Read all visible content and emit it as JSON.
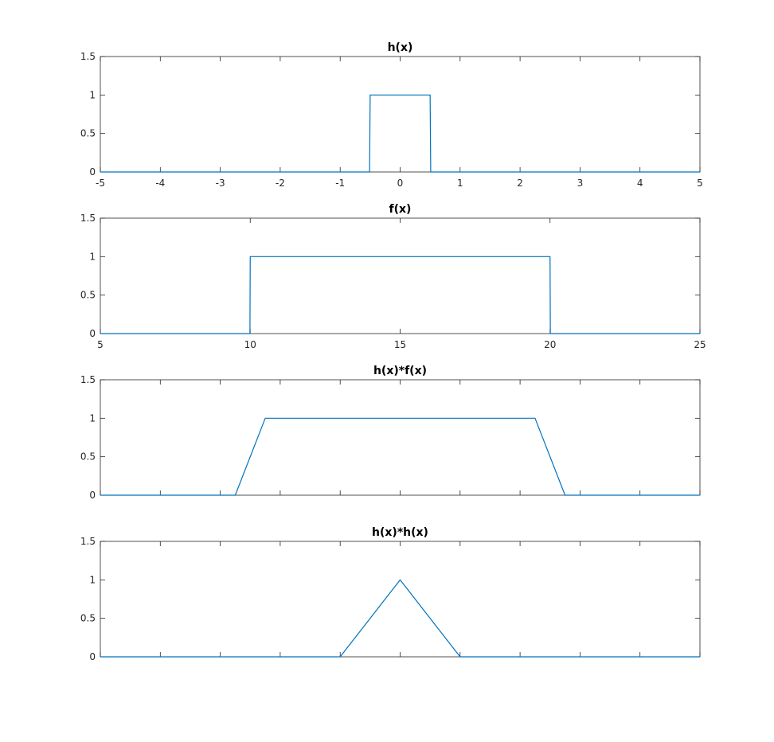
{
  "colors": {
    "line": "#0072bd",
    "axes": "#262626",
    "background": "#ffffff"
  },
  "chart_data": [
    {
      "type": "line",
      "title": "h(x)",
      "xlabel": "",
      "ylabel": "",
      "xlim": [
        -5,
        5
      ],
      "ylim": [
        0,
        1.5
      ],
      "xticks": [
        -5,
        -4,
        -3,
        -2,
        -1,
        0,
        1,
        2,
        3,
        4,
        5
      ],
      "xtick_labels": [
        "-5",
        "-4",
        "-3",
        "-2",
        "-1",
        "0",
        "1",
        "2",
        "3",
        "4",
        "5"
      ],
      "yticks": [
        0,
        0.5,
        1,
        1.5
      ],
      "ytick_labels": [
        "0",
        "0.5",
        "1",
        "1.5"
      ],
      "grid": false,
      "series": [
        {
          "x": [
            -5,
            -0.51,
            -0.5,
            0.5,
            0.51,
            5
          ],
          "y": [
            0,
            0,
            1,
            1,
            0,
            0
          ]
        }
      ]
    },
    {
      "type": "line",
      "title": "f(x)",
      "xlabel": "",
      "ylabel": "",
      "xlim": [
        5,
        25
      ],
      "ylim": [
        0,
        1.5
      ],
      "xticks": [
        5,
        10,
        15,
        20,
        25
      ],
      "xtick_labels": [
        "5",
        "10",
        "15",
        "20",
        "25"
      ],
      "yticks": [
        0,
        0.5,
        1,
        1.5
      ],
      "ytick_labels": [
        "0",
        "0.5",
        "1",
        "1.5"
      ],
      "grid": false,
      "series": [
        {
          "x": [
            5,
            9.99,
            10,
            20,
            20.01,
            25
          ],
          "y": [
            0,
            0,
            1,
            1,
            0,
            0
          ]
        }
      ]
    },
    {
      "type": "line",
      "title": "h(x)*f(x)",
      "xlabel": "",
      "ylabel": "",
      "xlim": [
        0,
        20
      ],
      "ylim": [
        0,
        1.5
      ],
      "xticks": [
        0,
        2,
        4,
        6,
        8,
        10,
        12,
        14,
        16,
        18,
        20
      ],
      "xtick_labels": [],
      "yticks": [
        0,
        0.5,
        1,
        1.5
      ],
      "ytick_labels": [
        "0",
        "0.5",
        "1",
        "1.5"
      ],
      "grid": false,
      "series": [
        {
          "x": [
            0,
            4.5,
            5.5,
            14.5,
            15.5,
            20
          ],
          "y": [
            0,
            0,
            1,
            1,
            0,
            0
          ]
        }
      ]
    },
    {
      "type": "line",
      "title": "h(x)*h(x)",
      "xlabel": "",
      "ylabel": "",
      "xlim": [
        -5,
        5
      ],
      "ylim": [
        0,
        1.5
      ],
      "xticks": [
        -5,
        -4,
        -3,
        -2,
        -1,
        0,
        1,
        2,
        3,
        4,
        5
      ],
      "xtick_labels": [],
      "yticks": [
        0,
        0.5,
        1,
        1.5
      ],
      "ytick_labels": [
        "0",
        "0.5",
        "1",
        "1.5"
      ],
      "grid": false,
      "series": [
        {
          "x": [
            -5,
            -1,
            0,
            1,
            5
          ],
          "y": [
            0,
            0,
            1,
            0,
            0
          ]
        }
      ]
    }
  ]
}
